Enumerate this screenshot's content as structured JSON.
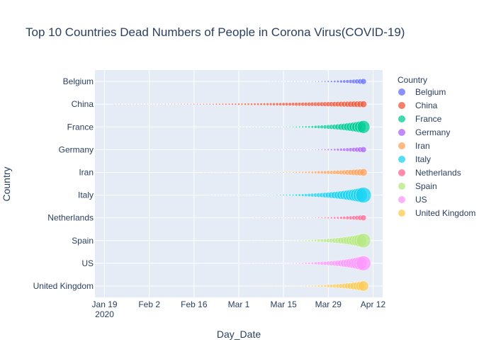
{
  "chart_data": {
    "type": "scatter",
    "title": "Top 10 Countries Dead Numbers of People in Corona Virus(COVID-19)",
    "xlabel": "Day_Date",
    "ylabel": "Country",
    "x_range": [
      "2020-01-16",
      "2020-04-15"
    ],
    "x_ticks": [
      {
        "date": "2020-01-19",
        "label": "Jan 19",
        "sublabel": "2020"
      },
      {
        "date": "2020-02-02",
        "label": "Feb 2",
        "sublabel": ""
      },
      {
        "date": "2020-02-16",
        "label": "Feb 16",
        "sublabel": ""
      },
      {
        "date": "2020-03-01",
        "label": "Mar 1",
        "sublabel": ""
      },
      {
        "date": "2020-03-15",
        "label": "Mar 15",
        "sublabel": ""
      },
      {
        "date": "2020-03-29",
        "label": "Mar 29",
        "sublabel": ""
      },
      {
        "date": "2020-04-12",
        "label": "Apr 12",
        "sublabel": ""
      }
    ],
    "categories": [
      "Belgium",
      "China",
      "France",
      "Germany",
      "Iran",
      "Italy",
      "Netherlands",
      "Spain",
      "US",
      "United Kingdom"
    ],
    "legend": {
      "title": "Country",
      "position": "right"
    },
    "grid": true,
    "series": [
      {
        "name": "Belgium",
        "color": "#636efa",
        "start_date": "2020-03-11",
        "end_date": "2020-04-09",
        "start_deaths": 3,
        "end_deaths": 2523
      },
      {
        "name": "China",
        "color": "#EF553B",
        "start_date": "2020-01-22",
        "end_date": "2020-04-09",
        "start_deaths": 17,
        "end_deaths": 3337
      },
      {
        "name": "France",
        "color": "#00cc96",
        "start_date": "2020-03-01",
        "end_date": "2020-04-09",
        "start_deaths": 2,
        "end_deaths": 12228
      },
      {
        "name": "Germany",
        "color": "#ab63fa",
        "start_date": "2020-03-09",
        "end_date": "2020-04-09",
        "start_deaths": 2,
        "end_deaths": 2607
      },
      {
        "name": "Iran",
        "color": "#FFA15A",
        "start_date": "2020-02-19",
        "end_date": "2020-04-09",
        "start_deaths": 2,
        "end_deaths": 4110
      },
      {
        "name": "Italy",
        "color": "#19d3f3",
        "start_date": "2020-02-21",
        "end_date": "2020-04-09",
        "start_deaths": 1,
        "end_deaths": 18279
      },
      {
        "name": "Netherlands",
        "color": "#FF6692",
        "start_date": "2020-03-06",
        "end_date": "2020-04-09",
        "start_deaths": 1,
        "end_deaths": 2403
      },
      {
        "name": "Spain",
        "color": "#B6E880",
        "start_date": "2020-03-03",
        "end_date": "2020-04-09",
        "start_deaths": 1,
        "end_deaths": 15447
      },
      {
        "name": "US",
        "color": "#FF97FF",
        "start_date": "2020-03-01",
        "end_date": "2020-04-09",
        "start_deaths": 1,
        "end_deaths": 16478
      },
      {
        "name": "United Kingdom",
        "color": "#FECB52",
        "start_date": "2020-03-05",
        "end_date": "2020-04-09",
        "start_deaths": 1,
        "end_deaths": 7978
      }
    ]
  }
}
